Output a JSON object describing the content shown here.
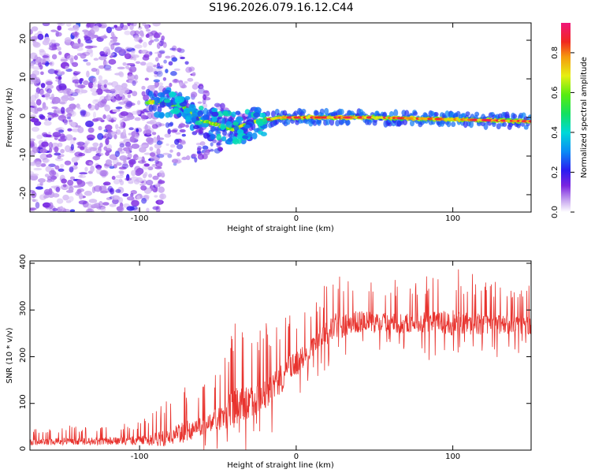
{
  "title": "S196.2026.079.16.12.C44",
  "chart_data": [
    {
      "type": "heatmap",
      "title": "S196.2026.079.16.12.C44",
      "xlabel": "Height of straight line (km)",
      "ylabel": "Frequency (Hz)",
      "xlim": [
        -170,
        150
      ],
      "ylim": [
        -24.5,
        24.5
      ],
      "xticks": [
        -100,
        0,
        100
      ],
      "yticks": [
        -20,
        -10,
        0,
        10,
        20
      ],
      "colorbar": {
        "label": "Normalized spectral amplitude",
        "range": [
          0.0,
          0.95
        ],
        "ticks": [
          "0.0",
          "0.2",
          "0.4",
          "0.6",
          "0.8"
        ]
      },
      "ridge": {
        "description_points": [
          {
            "x": -85,
            "freq": 4
          },
          {
            "x": -72,
            "freq": 3
          },
          {
            "x": -60,
            "freq": -1
          },
          {
            "x": -40,
            "freq": -3
          },
          {
            "x": -25,
            "freq": -1
          },
          {
            "x": -10,
            "freq": 0
          },
          {
            "x": 0,
            "freq": 0
          },
          {
            "x": 50,
            "freq": 0
          },
          {
            "x": 100,
            "freq": -0.5
          },
          {
            "x": 150,
            "freq": -1
          }
        ]
      }
    },
    {
      "type": "line",
      "xlabel": "Height of straight line (km)",
      "ylabel": "SNR (10 * v/v)",
      "xlim": [
        -170,
        150
      ],
      "ylim": [
        0,
        405
      ],
      "xticks": [
        -100,
        0,
        100
      ],
      "yticks": [
        0,
        100,
        200,
        300,
        400
      ],
      "series": [
        {
          "name": "SNR",
          "color": "#e8332e",
          "envelope": [
            {
              "x": -170,
              "baseline": 18,
              "peak": 50
            },
            {
              "x": -100,
              "baseline": 20,
              "peak": 60
            },
            {
              "x": -85,
              "baseline": 25,
              "peak": 100
            },
            {
              "x": -70,
              "baseline": 40,
              "peak": 140
            },
            {
              "x": -55,
              "baseline": 60,
              "peak": 150
            },
            {
              "x": -40,
              "baseline": 90,
              "peak": 280
            },
            {
              "x": -25,
              "baseline": 110,
              "peak": 260
            },
            {
              "x": -15,
              "baseline": 130,
              "peak": 280
            },
            {
              "x": -5,
              "baseline": 170,
              "peak": 300
            },
            {
              "x": 5,
              "baseline": 200,
              "peak": 310
            },
            {
              "x": 15,
              "baseline": 240,
              "peak": 340
            },
            {
              "x": 25,
              "baseline": 265,
              "peak": 390
            },
            {
              "x": 40,
              "baseline": 275,
              "peak": 380
            },
            {
              "x": 60,
              "baseline": 272,
              "peak": 370
            },
            {
              "x": 80,
              "baseline": 273,
              "peak": 370
            },
            {
              "x": 100,
              "baseline": 272,
              "peak": 395
            },
            {
              "x": 120,
              "baseline": 270,
              "peak": 370
            },
            {
              "x": 150,
              "baseline": 268,
              "peak": 360
            }
          ]
        }
      ]
    }
  ]
}
